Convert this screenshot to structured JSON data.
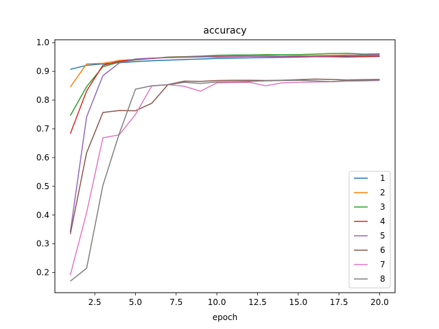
{
  "chart_data": {
    "type": "line",
    "title": "accuracy",
    "xlabel": "epoch",
    "ylabel": "",
    "xlim": [
      0.05,
      20.95
    ],
    "ylim": [
      0.13,
      1.01
    ],
    "xticks": [
      2.5,
      5.0,
      7.5,
      10.0,
      12.5,
      15.0,
      17.5,
      20.0
    ],
    "xtick_labels": [
      "2.5",
      "5.0",
      "7.5",
      "10.0",
      "12.5",
      "15.0",
      "17.5",
      "20.0"
    ],
    "yticks": [
      0.2,
      0.3,
      0.4,
      0.5,
      0.6,
      0.7,
      0.8,
      0.9,
      1.0
    ],
    "ytick_labels": [
      "0.2",
      "0.3",
      "0.4",
      "0.5",
      "0.6",
      "0.7",
      "0.8",
      "0.9",
      "1.0"
    ],
    "grid": false,
    "legend_position": "lower-right",
    "x": [
      1,
      2,
      3,
      4,
      5,
      6,
      7,
      8,
      9,
      10,
      11,
      12,
      13,
      14,
      15,
      16,
      17,
      18,
      19,
      20
    ],
    "series": [
      {
        "name": "1",
        "color": "#1f77b4",
        "values": [
          0.907,
          0.921,
          0.926,
          0.93,
          0.934,
          0.937,
          0.939,
          0.941,
          0.943,
          0.945,
          0.946,
          0.947,
          0.948,
          0.949,
          0.95,
          0.951,
          0.952,
          0.952,
          0.953,
          0.954
        ]
      },
      {
        "name": "2",
        "color": "#ff7f0e",
        "values": [
          0.846,
          0.926,
          0.928,
          0.938,
          0.942,
          0.945,
          0.948,
          0.949,
          0.95,
          0.952,
          0.953,
          0.954,
          0.955,
          0.953,
          0.954,
          0.955,
          0.956,
          0.957,
          0.956,
          0.957
        ]
      },
      {
        "name": "3",
        "color": "#2ca02c",
        "values": [
          0.746,
          0.847,
          0.916,
          0.932,
          0.94,
          0.945,
          0.95,
          0.951,
          0.953,
          0.956,
          0.957,
          0.957,
          0.958,
          0.958,
          0.958,
          0.96,
          0.962,
          0.963,
          0.96,
          0.961
        ]
      },
      {
        "name": "4",
        "color": "#d62728",
        "values": [
          0.683,
          0.832,
          0.921,
          0.935,
          0.941,
          0.945,
          0.949,
          0.95,
          0.951,
          0.951,
          0.952,
          0.952,
          0.952,
          0.951,
          0.951,
          0.951,
          0.951,
          0.95,
          0.951,
          0.952
        ]
      },
      {
        "name": "5",
        "color": "#9467bd",
        "values": [
          0.341,
          0.742,
          0.885,
          0.929,
          0.943,
          0.946,
          0.948,
          0.949,
          0.951,
          0.95,
          0.951,
          0.952,
          0.952,
          0.952,
          0.953,
          0.953,
          0.954,
          0.956,
          0.957,
          0.959
        ]
      },
      {
        "name": "6",
        "color": "#8c564b",
        "values": [
          0.334,
          0.617,
          0.757,
          0.764,
          0.763,
          0.789,
          0.854,
          0.866,
          0.865,
          0.868,
          0.869,
          0.869,
          0.868,
          0.869,
          0.871,
          0.873,
          0.872,
          0.87,
          0.871,
          0.872
        ]
      },
      {
        "name": "7",
        "color": "#e377c2",
        "values": [
          0.191,
          0.409,
          0.669,
          0.679,
          0.75,
          0.849,
          0.854,
          0.848,
          0.831,
          0.86,
          0.861,
          0.862,
          0.85,
          0.86,
          0.862,
          0.863,
          0.864,
          0.866,
          0.867,
          0.868
        ]
      },
      {
        "name": "8",
        "color": "#7f7f7f",
        "values": [
          0.17,
          0.215,
          0.503,
          0.682,
          0.838,
          0.85,
          0.853,
          0.862,
          0.858,
          0.863,
          0.864,
          0.865,
          0.867,
          0.868,
          0.869,
          0.867,
          0.864,
          0.868,
          0.868,
          0.87
        ]
      }
    ]
  }
}
